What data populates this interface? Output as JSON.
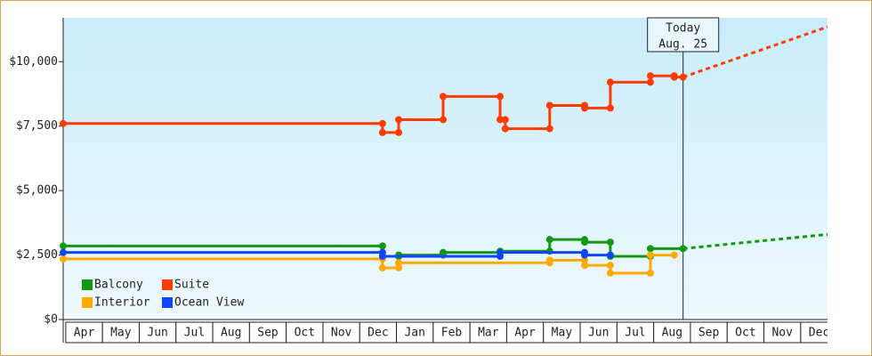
{
  "chart_data": {
    "type": "line",
    "step": true,
    "categories": [
      "Apr",
      "May",
      "Jun",
      "Jul",
      "Aug",
      "Sep",
      "Oct",
      "Nov",
      "Dec",
      "Jan",
      "Feb",
      "Mar",
      "Apr",
      "May",
      "Jun",
      "Jul",
      "Aug",
      "Sep",
      "Oct",
      "Nov",
      "Dec"
    ],
    "xlim": [
      -0.07,
      20.73
    ],
    "ylim": [
      0,
      11700
    ],
    "yticks": [
      {
        "value": 0,
        "label": "$0"
      },
      {
        "value": 2500,
        "label": "$2,500"
      },
      {
        "value": 5000,
        "label": "$5,000"
      },
      {
        "value": 7500,
        "label": "$7,500"
      },
      {
        "value": 10000,
        "label": "$10,000"
      }
    ],
    "legend": "lower left",
    "today": {
      "x": 16.8,
      "label": [
        "Today",
        "Aug. 25"
      ]
    },
    "series": [
      {
        "name": "Balcony",
        "color": "#119911",
        "x": [
          -0.07,
          8.62,
          8.62,
          9.06,
          9.06,
          10.27,
          10.27,
          11.82,
          11.82,
          13.17,
          13.17,
          14.12,
          14.12,
          14.82,
          14.82,
          15.91,
          15.91,
          16.8
        ],
        "values": [
          2850,
          2850,
          2450,
          2450,
          2500,
          2500,
          2600,
          2600,
          2650,
          2650,
          3100,
          3100,
          3000,
          3000,
          2450,
          2450,
          2750,
          2750
        ],
        "projection": {
          "x": [
            16.8,
            20.73
          ],
          "values": [
            2750,
            3300
          ]
        }
      },
      {
        "name": "Suite",
        "color": "#ff3c00",
        "x": [
          -0.07,
          8.62,
          8.62,
          9.06,
          9.06,
          10.27,
          10.27,
          11.82,
          11.82,
          11.96,
          11.96,
          13.17,
          13.17,
          14.12,
          14.12,
          14.82,
          14.82,
          15.91,
          15.91,
          16.56,
          16.56,
          16.8
        ],
        "values": [
          7600,
          7600,
          7250,
          7250,
          7750,
          7750,
          8650,
          8650,
          7750,
          7750,
          7400,
          7400,
          8300,
          8300,
          8200,
          8200,
          9200,
          9200,
          9450,
          9450,
          9400,
          9400
        ],
        "projection": {
          "x": [
            16.8,
            20.73
          ],
          "values": [
            9400,
            11350
          ]
        }
      },
      {
        "name": "Interior",
        "color": "#ffaa00",
        "x": [
          -0.07,
          8.62,
          8.62,
          9.06,
          9.06,
          13.17,
          13.17,
          14.12,
          14.12,
          14.82,
          14.82,
          15.91,
          15.91,
          16.56
        ],
        "values": [
          2350,
          2350,
          2000,
          2000,
          2200,
          2200,
          2300,
          2300,
          2100,
          2100,
          1800,
          1800,
          2500,
          2500
        ]
      },
      {
        "name": "Ocean View",
        "color": "#1144ff",
        "x": [
          -0.07,
          8.62,
          8.62,
          11.82,
          11.82,
          14.12,
          14.12,
          14.82
        ],
        "values": [
          2600,
          2600,
          2450,
          2450,
          2600,
          2600,
          2500,
          2500
        ]
      }
    ]
  }
}
